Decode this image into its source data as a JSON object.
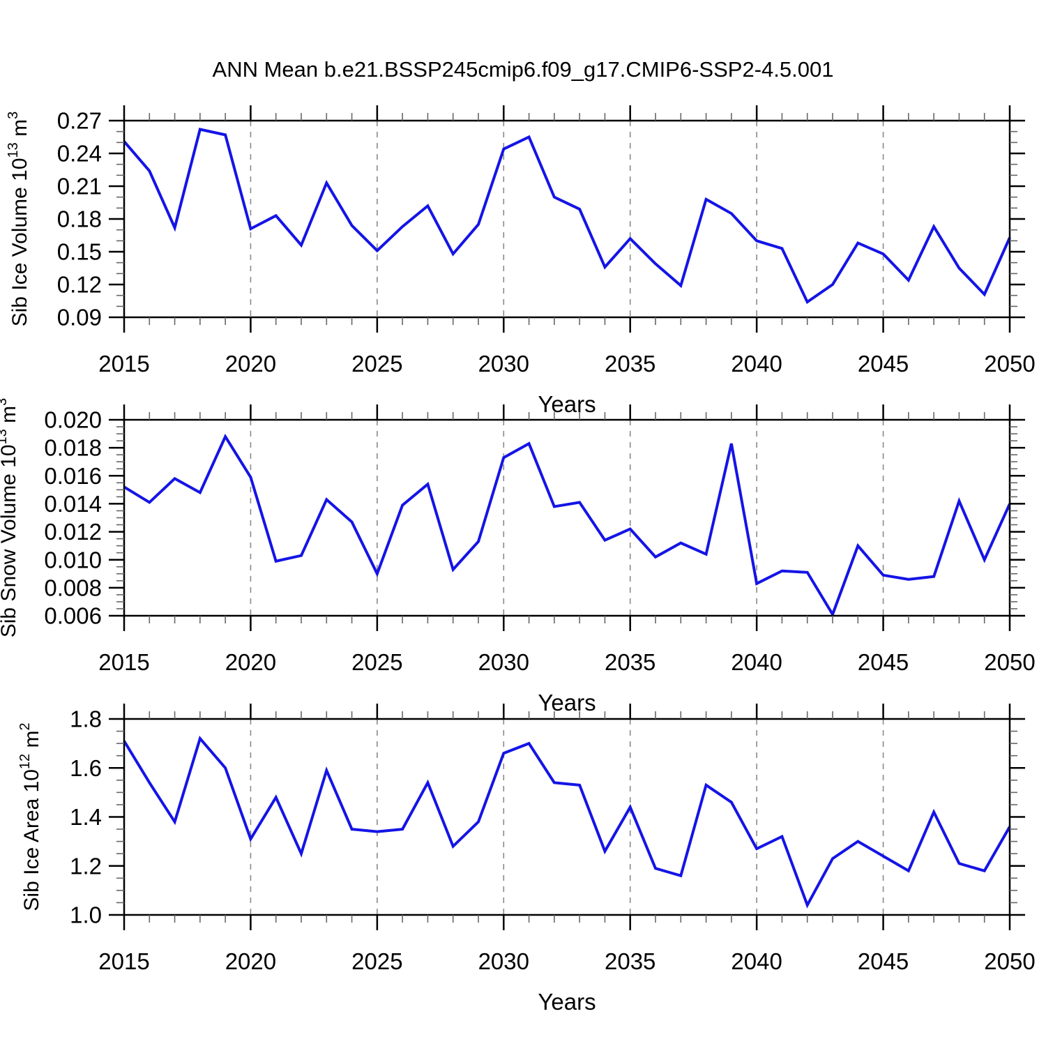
{
  "title": "ANN Mean b.e21.BSSP245cmip6.f09_g17.CMIP6-SSP2-4.5.001",
  "colors": {
    "line": "#1414e6",
    "frame": "#000000",
    "minor_tick": "#666666",
    "gridline": "#8a8a8a",
    "text": "#000000",
    "background": "#ffffff"
  },
  "chart_data": [
    {
      "type": "line",
      "name": "sib-ice-volume",
      "ylabel": "Sib Ice Volume 10^13 m^3",
      "ylabel_parts": [
        {
          "t": "Sib Ice Volume 10"
        },
        {
          "t": "13",
          "sup": true
        },
        {
          "t": " m"
        },
        {
          "t": "3",
          "sup": true
        }
      ],
      "xlabel": "Years",
      "x": [
        2015,
        2016,
        2017,
        2018,
        2019,
        2020,
        2021,
        2022,
        2023,
        2024,
        2025,
        2026,
        2027,
        2028,
        2029,
        2030,
        2031,
        2032,
        2033,
        2034,
        2035,
        2036,
        2037,
        2038,
        2039,
        2040,
        2041,
        2042,
        2043,
        2044,
        2045,
        2046,
        2047,
        2048,
        2049,
        2050
      ],
      "values": [
        0.251,
        0.224,
        0.172,
        0.262,
        0.257,
        0.171,
        0.183,
        0.156,
        0.213,
        0.174,
        0.151,
        0.173,
        0.192,
        0.148,
        0.175,
        0.244,
        0.255,
        0.2,
        0.189,
        0.136,
        0.162,
        0.139,
        0.119,
        0.198,
        0.185,
        0.16,
        0.153,
        0.104,
        0.12,
        0.158,
        0.148,
        0.124,
        0.173,
        0.135,
        0.111,
        0.163
      ],
      "ylim": [
        0.09,
        0.27
      ],
      "ytick_step": 0.03,
      "yminor_step": 0.01,
      "ytick_labels": [
        "0.09",
        "0.12",
        "0.15",
        "0.18",
        "0.21",
        "0.24",
        "0.27"
      ],
      "xtick_labels": [
        "2015",
        "2020",
        "2025",
        "2030",
        "2035",
        "2040",
        "2045",
        "2050"
      ],
      "grid_years": [
        2020,
        2025,
        2030,
        2035,
        2040,
        2045
      ],
      "grid": "vertical-dashed",
      "legend": "none"
    },
    {
      "type": "line",
      "name": "sib-snow-volume",
      "ylabel": "Sib Snow Volume 10^13 m^3",
      "ylabel_parts": [
        {
          "t": "Sib Snow Volume 10"
        },
        {
          "t": "13",
          "sup": true
        },
        {
          "t": " m"
        },
        {
          "t": "3",
          "sup": true
        }
      ],
      "xlabel": "Years",
      "x": [
        2015,
        2016,
        2017,
        2018,
        2019,
        2020,
        2021,
        2022,
        2023,
        2024,
        2025,
        2026,
        2027,
        2028,
        2029,
        2030,
        2031,
        2032,
        2033,
        2034,
        2035,
        2036,
        2037,
        2038,
        2039,
        2040,
        2041,
        2042,
        2043,
        2044,
        2045,
        2046,
        2047,
        2048,
        2049,
        2050
      ],
      "values": [
        0.0152,
        0.0141,
        0.0158,
        0.0148,
        0.0188,
        0.0159,
        0.0099,
        0.0103,
        0.0143,
        0.0127,
        0.009,
        0.0139,
        0.0154,
        0.0093,
        0.0113,
        0.0173,
        0.0183,
        0.0138,
        0.0141,
        0.0114,
        0.0122,
        0.0102,
        0.0112,
        0.0104,
        0.0183,
        0.0083,
        0.0092,
        0.0091,
        0.0061,
        0.011,
        0.0089,
        0.0086,
        0.0088,
        0.0142,
        0.01,
        0.014
      ],
      "ylim": [
        0.006,
        0.02
      ],
      "ytick_step": 0.002,
      "yminor_step": 0.0005,
      "ytick_labels": [
        "0.006",
        "0.008",
        "0.010",
        "0.012",
        "0.014",
        "0.016",
        "0.018",
        "0.020"
      ],
      "xtick_labels": [
        "2015",
        "2020",
        "2025",
        "2030",
        "2035",
        "2040",
        "2045",
        "2050"
      ],
      "grid_years": [
        2020,
        2025,
        2030,
        2035,
        2040,
        2045
      ],
      "grid": "vertical-dashed",
      "legend": "none"
    },
    {
      "type": "line",
      "name": "sib-ice-area",
      "ylabel": "Sib Ice Area 10^12 m^2",
      "ylabel_parts": [
        {
          "t": "Sib Ice Area 10"
        },
        {
          "t": "12",
          "sup": true
        },
        {
          "t": " m"
        },
        {
          "t": "2",
          "sup": true
        }
      ],
      "xlabel": "Years",
      "x": [
        2015,
        2016,
        2017,
        2018,
        2019,
        2020,
        2021,
        2022,
        2023,
        2024,
        2025,
        2026,
        2027,
        2028,
        2029,
        2030,
        2031,
        2032,
        2033,
        2034,
        2035,
        2036,
        2037,
        2038,
        2039,
        2040,
        2041,
        2042,
        2043,
        2044,
        2045,
        2046,
        2047,
        2048,
        2049,
        2050
      ],
      "values": [
        1.71,
        1.54,
        1.38,
        1.72,
        1.6,
        1.31,
        1.48,
        1.25,
        1.59,
        1.35,
        1.34,
        1.35,
        1.54,
        1.28,
        1.38,
        1.66,
        1.7,
        1.54,
        1.53,
        1.26,
        1.44,
        1.19,
        1.16,
        1.53,
        1.46,
        1.27,
        1.32,
        1.04,
        1.23,
        1.3,
        1.24,
        1.18,
        1.42,
        1.21,
        1.18,
        1.36
      ],
      "ylim": [
        1.0,
        1.8
      ],
      "ytick_step": 0.2,
      "yminor_step": 0.05,
      "ytick_labels": [
        "1.0",
        "1.2",
        "1.4",
        "1.6",
        "1.8"
      ],
      "xtick_labels": [
        "2015",
        "2020",
        "2025",
        "2030",
        "2035",
        "2040",
        "2045",
        "2050"
      ],
      "grid_years": [
        2020,
        2025,
        2030,
        2035,
        2040,
        2045
      ],
      "grid": "vertical-dashed",
      "legend": "none"
    }
  ]
}
